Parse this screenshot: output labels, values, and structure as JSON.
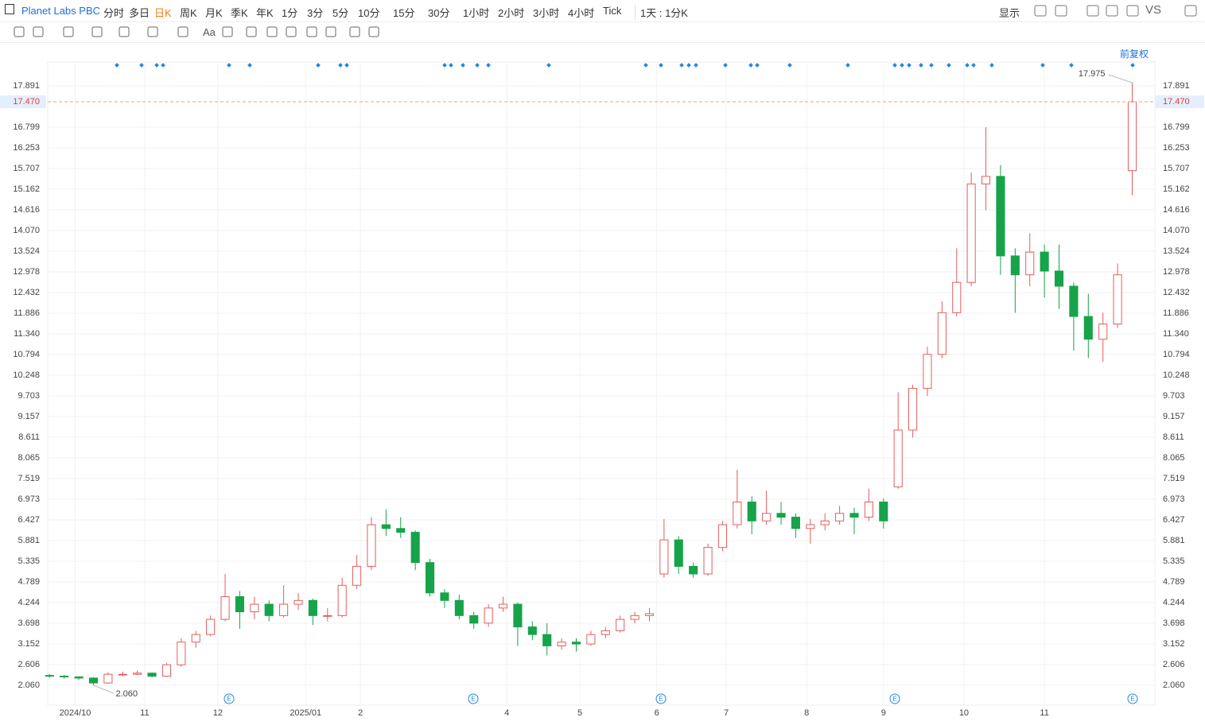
{
  "toolbar": {
    "symbol": "Planet Labs PBC",
    "periods": [
      "分时",
      "多日",
      "日K",
      "周K",
      "月K",
      "季K",
      "年K",
      "1分",
      "3分",
      "5分",
      "10分",
      "15分",
      "30分",
      "1小时",
      "2小时",
      "3小时",
      "4小时",
      "Tick",
      "1天 : 1分K"
    ],
    "active_period_index": 2,
    "display": "显示",
    "compare": "VS",
    "font_tool": "Aa",
    "adjust": "前复权"
  },
  "chart_data": {
    "type": "candlestick",
    "title": "Planet Labs PBC",
    "x": [
      0,
      4,
      8,
      12,
      16,
      20,
      24,
      28,
      32,
      36,
      40,
      44,
      48,
      52,
      56,
      60,
      64,
      68,
      72,
      76,
      80,
      84,
      88,
      92,
      96,
      100,
      104,
      108,
      112,
      116,
      120,
      124,
      128,
      132,
      136,
      140,
      144,
      148,
      152,
      156,
      160,
      164,
      168,
      172,
      176,
      180,
      184,
      188,
      192,
      196,
      200,
      204,
      208,
      212,
      216,
      220,
      224,
      228,
      232,
      236,
      240,
      244,
      248,
      252,
      256,
      260,
      264,
      268,
      272,
      276,
      280,
      284,
      288,
      292,
      296
    ],
    "open": [
      2.32,
      2.3,
      2.28,
      2.25,
      2.12,
      2.35,
      2.35,
      2.38,
      2.3,
      2.6,
      3.2,
      3.4,
      3.8,
      4.4,
      4.0,
      4.2,
      3.9,
      4.2,
      4.3,
      3.9,
      3.9,
      4.7,
      5.2,
      6.3,
      6.2,
      6.1,
      5.3,
      4.5,
      4.3,
      3.9,
      3.7,
      4.1,
      4.2,
      3.6,
      3.4,
      3.1,
      3.2,
      3.15,
      3.4,
      3.5,
      3.8,
      3.9,
      5.0,
      5.9,
      5.2,
      5.0,
      5.7,
      6.3,
      6.9,
      6.4,
      6.6,
      6.5,
      6.2,
      6.3,
      6.4,
      6.6,
      6.5,
      6.9,
      7.3,
      8.8,
      9.9,
      10.8,
      11.9,
      12.7,
      15.3,
      15.5,
      13.4,
      12.9,
      13.5,
      13.0,
      12.6,
      11.8,
      11.2,
      11.6,
      15.65
    ],
    "high": [
      2.36,
      2.33,
      2.3,
      2.27,
      2.4,
      2.42,
      2.45,
      2.4,
      2.65,
      3.3,
      3.5,
      3.9,
      5.0,
      4.55,
      4.4,
      4.3,
      4.7,
      4.5,
      4.35,
      4.1,
      4.9,
      5.5,
      6.5,
      6.7,
      6.5,
      6.15,
      5.4,
      4.6,
      4.45,
      4.0,
      4.2,
      4.4,
      4.25,
      3.75,
      3.7,
      3.3,
      3.3,
      3.5,
      3.6,
      3.9,
      4.0,
      4.1,
      6.45,
      6.0,
      5.3,
      5.8,
      6.4,
      7.75,
      7.05,
      7.2,
      6.9,
      6.6,
      6.45,
      6.6,
      6.8,
      6.75,
      7.25,
      7.0,
      9.8,
      10.0,
      11.0,
      12.2,
      13.6,
      15.6,
      16.8,
      15.8,
      13.6,
      14.0,
      13.7,
      13.7,
      12.7,
      12.4,
      11.9,
      13.2,
      17.975
    ],
    "low": [
      2.26,
      2.24,
      2.2,
      2.06,
      2.1,
      2.3,
      2.32,
      2.26,
      2.28,
      2.55,
      3.05,
      3.35,
      3.75,
      3.55,
      3.8,
      3.75,
      3.85,
      4.05,
      3.65,
      3.75,
      3.85,
      4.6,
      5.1,
      6.0,
      5.95,
      5.1,
      4.4,
      4.1,
      3.8,
      3.55,
      3.6,
      4.0,
      3.1,
      3.25,
      2.85,
      3.0,
      2.95,
      3.1,
      3.3,
      3.45,
      3.7,
      3.75,
      4.9,
      5.0,
      4.9,
      4.95,
      5.6,
      6.2,
      6.05,
      6.3,
      6.3,
      5.95,
      5.8,
      6.15,
      6.3,
      6.05,
      6.4,
      6.2,
      7.25,
      8.6,
      9.7,
      10.7,
      11.8,
      12.6,
      14.6,
      12.9,
      11.9,
      12.6,
      12.3,
      12.0,
      10.9,
      10.7,
      10.6,
      11.5,
      15.0
    ],
    "close": [
      2.3,
      2.28,
      2.25,
      2.12,
      2.35,
      2.35,
      2.38,
      2.3,
      2.6,
      3.2,
      3.4,
      3.8,
      4.4,
      4.0,
      4.2,
      3.9,
      4.2,
      4.3,
      3.9,
      3.9,
      4.7,
      5.2,
      6.3,
      6.2,
      6.1,
      5.3,
      4.5,
      4.3,
      3.9,
      3.7,
      4.1,
      4.2,
      3.6,
      3.4,
      3.1,
      3.2,
      3.15,
      3.4,
      3.5,
      3.8,
      3.9,
      3.95,
      5.9,
      5.2,
      5.0,
      5.7,
      6.3,
      6.9,
      6.4,
      6.6,
      6.5,
      6.2,
      6.3,
      6.4,
      6.6,
      6.5,
      6.9,
      6.4,
      8.8,
      9.9,
      10.8,
      11.9,
      12.7,
      15.3,
      15.5,
      13.4,
      12.9,
      13.5,
      13.0,
      12.6,
      11.8,
      11.2,
      11.6,
      12.9,
      17.47
    ],
    "up_color": "#e45e5e",
    "down_color": "#17a34a",
    "xlim": [
      -0.5,
      302.2
    ],
    "xticks": [
      {
        "value": 7,
        "label": "2024/10"
      },
      {
        "value": 26,
        "label": "11"
      },
      {
        "value": 46,
        "label": "12"
      },
      {
        "value": 70,
        "label": "2025/01"
      },
      {
        "value": 85,
        "label": "2"
      },
      {
        "value": 125,
        "label": "4"
      },
      {
        "value": 145,
        "label": "5"
      },
      {
        "value": 166,
        "label": "6"
      },
      {
        "value": 185,
        "label": "7"
      },
      {
        "value": 207,
        "label": "8"
      },
      {
        "value": 228,
        "label": "9"
      },
      {
        "value": 250,
        "label": "10"
      },
      {
        "value": 272,
        "label": "11"
      }
    ],
    "ylim": [
      1.535,
      18.521
    ],
    "yticks": [
      {
        "value": 2.06,
        "label": "2.060"
      },
      2.606,
      3.152,
      3.698,
      4.244,
      4.789,
      5.335,
      5.881,
      6.427,
      6.973,
      7.519,
      8.065,
      8.611,
      9.157,
      9.703,
      10.248,
      10.794,
      {
        "value": 11.34,
        "label": "11.340"
      },
      11.886,
      12.432,
      12.978,
      13.524,
      {
        "value": 14.07,
        "label": "14.070"
      },
      14.616,
      15.162,
      15.707,
      16.253,
      16.799,
      17.891
    ],
    "grid": true,
    "current_price": {
      "value": 17.47,
      "label": "17.470"
    },
    "max_marker": 17.975,
    "min_marker": {
      "value": 2.06,
      "label": "2.060"
    },
    "earnings_label": "E"
  }
}
